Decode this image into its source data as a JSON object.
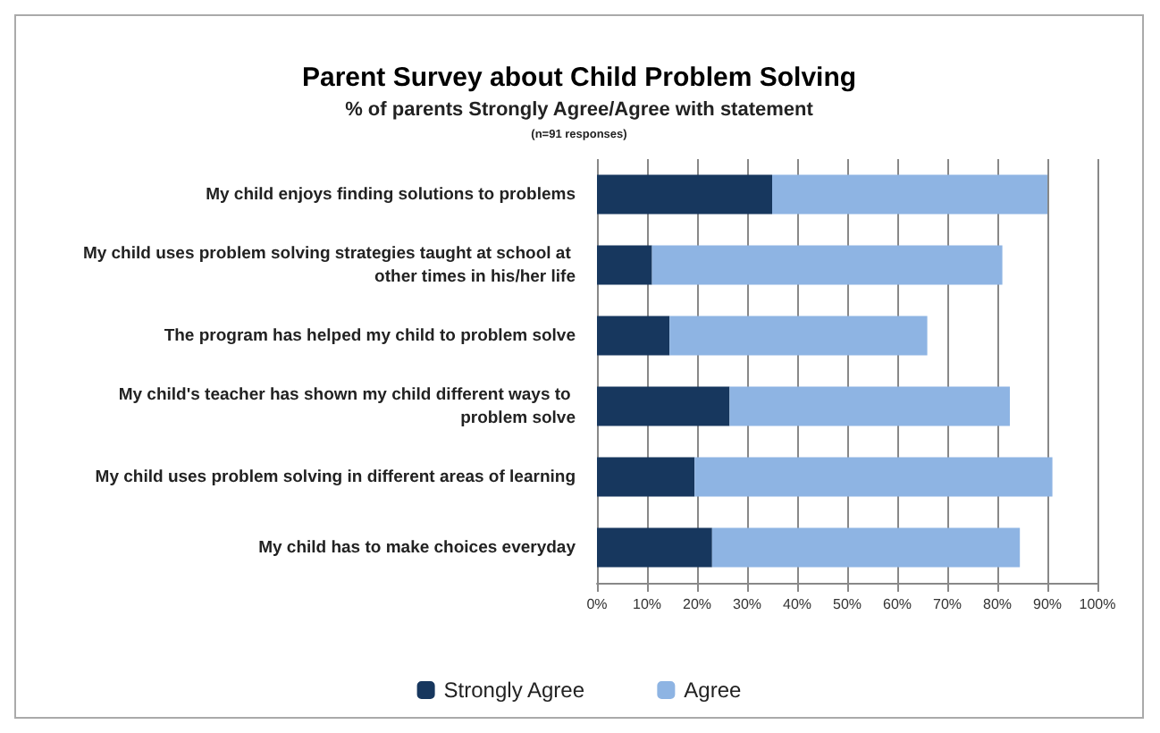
{
  "chart_data": {
    "type": "bar",
    "orientation": "horizontal",
    "stacked": true,
    "title": "Parent Survey about Child Problem Solving",
    "subtitle": "% of parents Strongly Agree/Agree with statement",
    "annotations": [
      "(n=91 responses)"
    ],
    "categories": [
      "My child enjoys finding solutions to problems",
      "My child uses problem solving strategies taught at school at other times in his/her life",
      "The program has helped my child to problem solve",
      "My child's teacher has shown my child different ways to problem solve",
      "My child uses problem solving in different areas of learning",
      "My child has to make choices everyday"
    ],
    "series": [
      {
        "name": "Strongly Agree",
        "color": "#17375e",
        "values": [
          35,
          11,
          14.5,
          26.5,
          19.5,
          23
        ]
      },
      {
        "name": "Agree",
        "color": "#8eb4e3",
        "values": [
          55,
          70,
          51.5,
          56,
          71.5,
          61.5
        ]
      }
    ],
    "xlim": [
      0,
      100
    ],
    "xticks": [
      {
        "value": 0,
        "label": "0%"
      },
      {
        "value": 10,
        "label": "10%"
      },
      {
        "value": 20,
        "label": "20%"
      },
      {
        "value": 30,
        "label": "30%"
      },
      {
        "value": 40,
        "label": "40%"
      },
      {
        "value": 50,
        "label": "50%"
      },
      {
        "value": 60,
        "label": "60%"
      },
      {
        "value": 70,
        "label": "70%"
      },
      {
        "value": 80,
        "label": "80%"
      },
      {
        "value": 90,
        "label": "90%"
      },
      {
        "value": 100,
        "label": "100%"
      }
    ],
    "grid": "x",
    "legend": "bottom"
  }
}
